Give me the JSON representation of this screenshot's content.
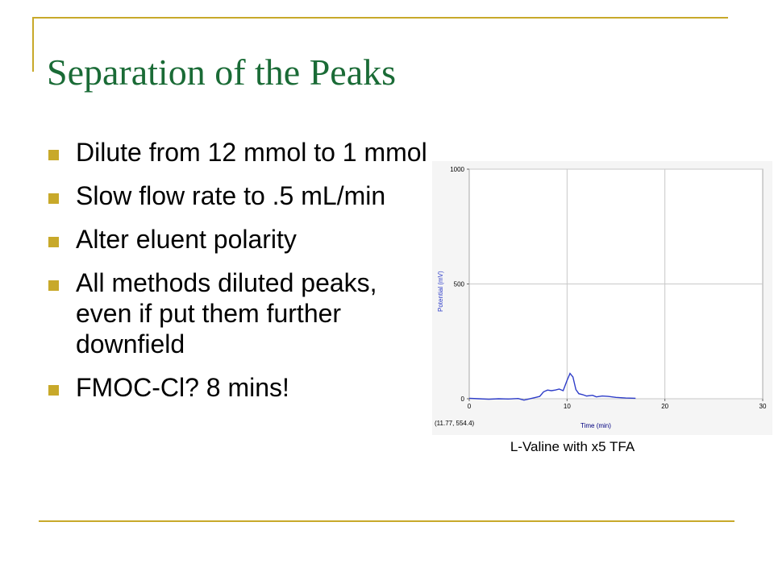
{
  "slide": {
    "title": "Separation of the Peaks",
    "bullets": [
      "Dilute from 12 mmol to 1 mmol",
      "Slow flow rate to .5 mL/min",
      "Alter eluent polarity",
      "All methods diluted peaks, even if put them further downfield",
      "FMOC-Cl? 8 mins!"
    ],
    "caption": "L-Valine with x5 TFA",
    "accent_color": "#c8a92a",
    "title_color": "#1a6b36"
  },
  "chart_data": {
    "type": "line",
    "xlabel": "Time (min)",
    "ylabel": "Potential (mV)",
    "xlim": [
      0,
      30
    ],
    "ylim": [
      0,
      1000
    ],
    "x_ticks": [
      0,
      10,
      20,
      30
    ],
    "y_ticks": [
      0,
      500,
      1000
    ],
    "grid": true,
    "cursor_readout": "(11.77, 554.4)",
    "series_color": "#2d3cc8",
    "series": [
      {
        "x": [
          0,
          1,
          2,
          3,
          4,
          5,
          5.6,
          6,
          6.8,
          7.2,
          7.6,
          8.0,
          8.4,
          8.8,
          9.2,
          9.6,
          10.0,
          10.3,
          10.6,
          10.9,
          11.2,
          11.6,
          12.0,
          12.6,
          13.0,
          13.6,
          14.2,
          15.0,
          16.0,
          17.0
        ],
        "y": [
          2,
          0,
          -2,
          0,
          -1,
          1,
          -6,
          -2,
          6,
          10,
          30,
          38,
          35,
          38,
          42,
          35,
          80,
          110,
          95,
          40,
          22,
          18,
          12,
          15,
          8,
          12,
          10,
          6,
          3,
          2
        ]
      }
    ]
  }
}
